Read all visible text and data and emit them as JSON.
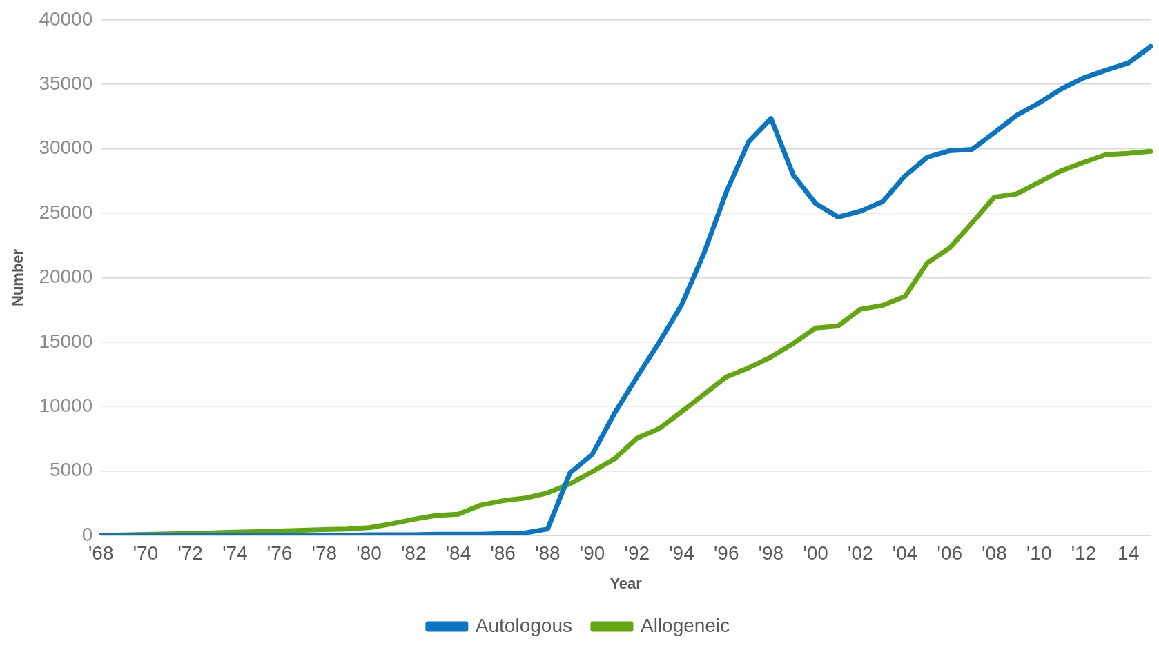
{
  "chart_data": {
    "type": "line",
    "xlabel": "Year",
    "ylabel": "Number",
    "categories": [
      "'68",
      null,
      "'70",
      null,
      "'72",
      null,
      "'74",
      null,
      "'76",
      null,
      "'78",
      null,
      "'80",
      null,
      "'82",
      null,
      "'84",
      null,
      "'86",
      null,
      "'88",
      null,
      "'90",
      null,
      "'92",
      null,
      "'94",
      null,
      "'96",
      null,
      "'98",
      null,
      "'00",
      null,
      "'02",
      null,
      "'04",
      null,
      "'06",
      null,
      "'08",
      null,
      "'10",
      null,
      "'12",
      null,
      "14",
      null
    ],
    "series": [
      {
        "name": "Autologous",
        "color": "#0a75c2",
        "values": [
          0,
          0,
          0,
          0,
          0,
          0,
          0,
          0,
          0,
          0,
          0,
          0,
          50,
          50,
          50,
          100,
          100,
          100,
          150,
          200,
          500,
          4850,
          6300,
          9500,
          12300,
          15000,
          17900,
          21900,
          26650,
          30550,
          32350,
          27950,
          25750,
          24700,
          25150,
          25900,
          27900,
          29350,
          29850,
          29950,
          31250,
          32600,
          33550,
          34650,
          35500,
          36100,
          36650,
          37950
        ]
      },
      {
        "name": "Allogeneic",
        "color": "#62a70f",
        "values": [
          0,
          40,
          80,
          120,
          150,
          200,
          250,
          300,
          350,
          400,
          450,
          500,
          600,
          900,
          1250,
          1550,
          1650,
          2350,
          2700,
          2900,
          3300,
          4000,
          4950,
          5950,
          7550,
          8300,
          9600,
          10950,
          12300,
          13000,
          13850,
          14900,
          16100,
          16250,
          17550,
          17850,
          18550,
          21150,
          22300,
          24250,
          26250,
          26500,
          27400,
          28300,
          28950,
          29550,
          29650,
          29800
        ]
      }
    ],
    "ylim": [
      0,
      40000
    ],
    "yticks": [
      0,
      5000,
      10000,
      15000,
      20000,
      25000,
      30000,
      35000,
      40000
    ],
    "grid": "y",
    "legend": "bottom",
    "marker": "none",
    "line_style": "solid"
  }
}
